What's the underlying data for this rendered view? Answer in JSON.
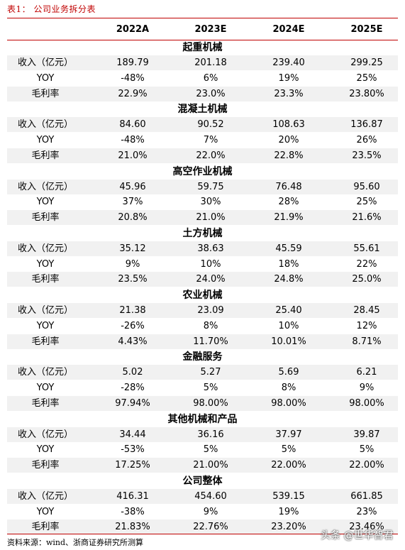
{
  "caption": "表1： 公司业务拆分表",
  "columns": [
    "2022A",
    "2023E",
    "2024E",
    "2025E"
  ],
  "sections": [
    {
      "title": "起重机械",
      "rows": [
        {
          "label": "收入（亿元）",
          "values": [
            "189.79",
            "201.18",
            "239.40",
            "299.25"
          ]
        },
        {
          "label": "YOY",
          "values": [
            "-48%",
            "6%",
            "19%",
            "25%"
          ]
        },
        {
          "label": "毛利率",
          "values": [
            "22.9%",
            "23.0%",
            "23.3%",
            "23.80%"
          ]
        }
      ]
    },
    {
      "title": "混凝土机械",
      "rows": [
        {
          "label": "收入（亿元）",
          "values": [
            "84.60",
            "90.52",
            "108.63",
            "136.87"
          ]
        },
        {
          "label": "YOY",
          "values": [
            "-48%",
            "7%",
            "20%",
            "26%"
          ]
        },
        {
          "label": "毛利率",
          "values": [
            "21.0%",
            "22.0%",
            "22.8%",
            "23.5%"
          ]
        }
      ]
    },
    {
      "title": "高空作业机械",
      "rows": [
        {
          "label": "收入（亿元）",
          "values": [
            "45.96",
            "59.75",
            "76.48",
            "95.60"
          ]
        },
        {
          "label": "YOY",
          "values": [
            "37%",
            "30%",
            "28%",
            "25%"
          ]
        },
        {
          "label": "毛利率",
          "values": [
            "20.8%",
            "21.0%",
            "21.9%",
            "21.6%"
          ]
        }
      ]
    },
    {
      "title": "土方机械",
      "rows": [
        {
          "label": "收入（亿元）",
          "values": [
            "35.12",
            "38.63",
            "45.59",
            "55.61"
          ]
        },
        {
          "label": "YOY",
          "values": [
            "9%",
            "10%",
            "18%",
            "22%"
          ]
        },
        {
          "label": "毛利率",
          "values": [
            "23.5%",
            "24.0%",
            "24.8%",
            "25.0%"
          ]
        }
      ]
    },
    {
      "title": "农业机械",
      "rows": [
        {
          "label": "收入（亿元）",
          "values": [
            "21.38",
            "23.09",
            "25.40",
            "28.45"
          ]
        },
        {
          "label": "YOY",
          "values": [
            "-26%",
            "8%",
            "10%",
            "12%"
          ]
        },
        {
          "label": "毛利率",
          "values": [
            "4.43%",
            "11.70%",
            "10.01%",
            "8.71%"
          ]
        }
      ]
    },
    {
      "title": "金融服务",
      "rows": [
        {
          "label": "收入（亿元）",
          "values": [
            "5.02",
            "5.27",
            "5.69",
            "6.21"
          ]
        },
        {
          "label": "YOY",
          "values": [
            "-28%",
            "5%",
            "8%",
            "9%"
          ]
        },
        {
          "label": "毛利率",
          "values": [
            "97.94%",
            "98.00%",
            "98.00%",
            "98.00%"
          ]
        }
      ]
    },
    {
      "title": "其他机械和产品",
      "rows": [
        {
          "label": "收入（亿元）",
          "values": [
            "34.44",
            "36.16",
            "37.97",
            "39.87"
          ]
        },
        {
          "label": "YOY",
          "values": [
            "-53%",
            "5%",
            "5%",
            "5%"
          ]
        },
        {
          "label": "毛利率",
          "values": [
            "17.25%",
            "21.00%",
            "22.00%",
            "22.00%"
          ]
        }
      ]
    },
    {
      "title": "公司整体",
      "rows": [
        {
          "label": "收入（亿元）",
          "values": [
            "416.31",
            "454.60",
            "539.15",
            "661.85"
          ]
        },
        {
          "label": "YOY",
          "values": [
            "-38%",
            "9%",
            "19%",
            "23%"
          ]
        },
        {
          "label": "毛利率",
          "values": [
            "21.83%",
            "22.76%",
            "23.20%",
            "23.46%"
          ]
        }
      ]
    }
  ],
  "source": "资料来源：wind、浙商证券研究所测算",
  "watermark": "头条 @世华智君"
}
